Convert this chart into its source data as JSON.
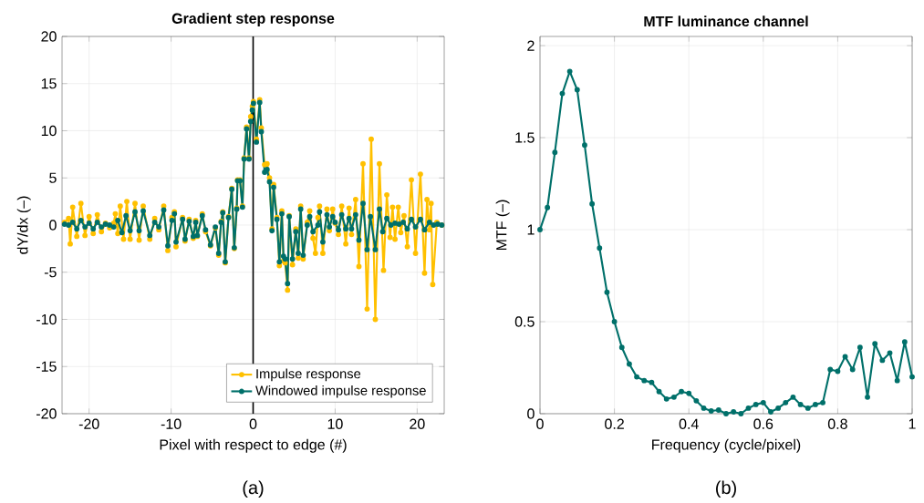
{
  "chart_data": [
    {
      "type": "line",
      "title": "Gradient step response",
      "xlabel": "Pixel with respect to edge (#)",
      "ylabel": "dY/dx (–)",
      "annotations": [
        "(a)"
      ],
      "xlim": [
        -23.3,
        23.3
      ],
      "xticks": [
        -20,
        -10,
        0,
        10,
        20
      ],
      "ylim": [
        -20,
        20
      ],
      "yticks": [
        -20,
        -15,
        -10,
        -5,
        0,
        5,
        10,
        15,
        20
      ],
      "grid": true,
      "legend": "bottom right",
      "marker": "circle",
      "ref_lines": [
        {
          "axis": "x",
          "value": 0,
          "color": "#000000"
        }
      ],
      "series": [
        {
          "name": "Impulse response",
          "color": "#ffc000",
          "x": [
            -23,
            -22.5,
            -22.3,
            -22,
            -21.5,
            -21,
            -20.5,
            -20,
            -19.5,
            -19,
            -18.5,
            -18,
            -17.5,
            -17,
            -16.8,
            -16.5,
            -16.2,
            -15.8,
            -15.4,
            -15,
            -14.4,
            -13.9,
            -13.4,
            -12.6,
            -12,
            -11.5,
            -10.9,
            -10.4,
            -9.9,
            -9.6,
            -9.4,
            -8.6,
            -8.3,
            -7.8,
            -7.3,
            -7,
            -6.8,
            -6.2,
            -5.8,
            -5.2,
            -4.6,
            -4.2,
            -3.9,
            -3.7,
            -3.4,
            -3.0,
            -2.6,
            -2.3,
            -2.0,
            -1.9,
            -1.6,
            -1.3,
            -1.1,
            -0.8,
            -0.5,
            -0.3,
            -0.1,
            0.04,
            0.4,
            0.8,
            1.0,
            1.4,
            1.7,
            2.0,
            2.3,
            2.5,
            2.9,
            3.2,
            3.5,
            3.7,
            3.9,
            4.2,
            4.4,
            4.8,
            5.2,
            5.5,
            5.8,
            6.1,
            6.6,
            6.9,
            7.3,
            7.6,
            7.9,
            8.1,
            8.5,
            9.0,
            9.3,
            9.7,
            10.0,
            10.4,
            10.8,
            11.3,
            11.7,
            12.0,
            12.5,
            12.9,
            13.4,
            13.9,
            14.4,
            14.9,
            15.4,
            15.9,
            16.3,
            16.7,
            17.0,
            17.3,
            17.7,
            18.0,
            18.4,
            18.8,
            19.3,
            19.8,
            20.4,
            20.9,
            21.2,
            21.5,
            21.7,
            21.9,
            22.4,
            23
          ],
          "values": [
            0.3,
            0.7,
            -2.0,
            1.9,
            -1.2,
            2.3,
            -1.1,
            0.9,
            -0.9,
            1.1,
            -0.7,
            0.2,
            -0.3,
            0.2,
            1.2,
            -0.9,
            2.0,
            -1.5,
            2.5,
            -1.5,
            2.3,
            -1.6,
            2.0,
            -1.5,
            0.7,
            -0.5,
            2.0,
            -2.7,
            0.8,
            1.4,
            -2.3,
            0.8,
            -1.7,
            0.6,
            -1.4,
            0.5,
            -1.2,
            1.2,
            -0.7,
            -2.2,
            -0.3,
            -3.2,
            0.4,
            1.4,
            -4.0,
            0.9,
            3.9,
            -2.5,
            1.8,
            4.8,
            4.8,
            2.0,
            7.1,
            10.4,
            7.1,
            11.5,
            12.6,
            13.1,
            9.1,
            13.3,
            10.3,
            6.4,
            6.5,
            5.0,
            -0.4,
            4.3,
            0.8,
            -4.3,
            1.5,
            -3.8,
            -4.0,
            -6.9,
            1.0,
            -4.2,
            -0.4,
            -3.5,
            2.0,
            -3.6,
            0.3,
            1.5,
            -1.4,
            -3.0,
            0.8,
            2.0,
            -3.0,
            1.7,
            -0.6,
            1.7,
            0.2,
            -1.0,
            2.0,
            -2.0,
            1.8,
            -1.0,
            2.7,
            -4.4,
            6.5,
            -8.9,
            9.1,
            -10.0,
            6.5,
            -4.8,
            3.2,
            -1.3,
            1.9,
            -1.5,
            1.9,
            -0.8,
            1.0,
            -2.3,
            4.8,
            -3.0,
            5.4,
            -5.1,
            2.7,
            -0.5,
            2.3,
            -6.3,
            0.3,
            0
          ]
        },
        {
          "name": "Windowed impulse response",
          "color": "#00706a",
          "x": [
            -23,
            -22.5,
            -22,
            -21.5,
            -21,
            -20.5,
            -20,
            -19.5,
            -19,
            -18.5,
            -18,
            -17.5,
            -17,
            -16.5,
            -16,
            -15.5,
            -15,
            -14.4,
            -13.9,
            -13.4,
            -12.6,
            -12,
            -11.5,
            -10.9,
            -10.4,
            -9.9,
            -9.6,
            -9.4,
            -8.6,
            -8.3,
            -7.8,
            -7.3,
            -7,
            -6.8,
            -6.2,
            -5.8,
            -5.2,
            -4.6,
            -4.2,
            -3.9,
            -3.7,
            -3.4,
            -3.0,
            -2.6,
            -2.3,
            -2.0,
            -1.9,
            -1.6,
            -1.3,
            -1.1,
            -0.8,
            -0.5,
            -0.3,
            -0.1,
            0.04,
            0.4,
            0.8,
            1.0,
            1.4,
            1.7,
            2.0,
            2.3,
            2.5,
            2.9,
            3.2,
            3.5,
            3.7,
            3.9,
            4.2,
            4.4,
            4.8,
            5.2,
            5.5,
            5.8,
            6.1,
            6.6,
            6.9,
            7.3,
            7.9,
            8.1,
            8.5,
            9.0,
            9.3,
            9.7,
            10.0,
            10.4,
            10.8,
            11.3,
            11.7,
            12.0,
            12.5,
            12.9,
            13.4,
            13.9,
            14.3,
            14.9,
            15.4,
            15.8,
            16.3,
            16.8,
            17.3,
            17.8,
            18.3,
            18.8,
            19.3,
            19.8,
            20.4,
            20.9,
            21.5,
            22,
            22.5,
            23
          ],
          "values": [
            0.1,
            0,
            0.3,
            -0.4,
            0.5,
            -0.2,
            0.2,
            -0.4,
            0.3,
            -0.2,
            0.1,
            0,
            -0.2,
            0.5,
            -0.8,
            1.0,
            -0.6,
            1.4,
            -0.6,
            1.5,
            -1.1,
            0.3,
            -0.2,
            1.6,
            -2.2,
            0.5,
            1.2,
            -1.8,
            0.6,
            -1.5,
            0.4,
            -1.2,
            0.3,
            -1.1,
            1.0,
            -0.5,
            -2.1,
            -0.2,
            -3.0,
            0.3,
            1.3,
            -3.9,
            0.8,
            3.8,
            -2.4,
            1.7,
            4.7,
            4.7,
            1.9,
            7.0,
            10.2,
            7.0,
            11.0,
            12.2,
            12.9,
            8.8,
            13.0,
            9.9,
            5.6,
            5.9,
            4.6,
            -0.6,
            4.0,
            0.6,
            -3.9,
            1.2,
            -3.3,
            -3.6,
            -6.2,
            0.9,
            -3.6,
            -0.7,
            -3.0,
            1.7,
            -3.2,
            0,
            0.9,
            -0.7,
            0,
            1.4,
            -1.8,
            1.1,
            -0.2,
            0.9,
            0.3,
            -0.5,
            1.1,
            -0.4,
            0.7,
            -0.4,
            1.1,
            -1.6,
            2.3,
            -2.6,
            0.9,
            -2.6,
            1.7,
            -0.7,
            0.7,
            0,
            0.2,
            0.1,
            0.3,
            -0.4,
            0.6,
            -0.2,
            0.6,
            -0.5,
            0.3,
            0,
            0.1,
            0
          ]
        }
      ]
    },
    {
      "type": "line",
      "title": "MTF luminance channel",
      "xlabel": "Frequency (cycle/pixel)",
      "ylabel": "MTF (–)",
      "annotations": [
        "(b)"
      ],
      "xlim": [
        0,
        1
      ],
      "xticks": [
        0,
        0.2,
        0.4,
        0.6,
        0.8,
        1
      ],
      "ylim": [
        0,
        2.05
      ],
      "yticks": [
        0,
        0.5,
        1,
        1.5,
        2
      ],
      "grid": true,
      "marker": "circle",
      "series": [
        {
          "color": "#00706a",
          "x": [
            0,
            0.02,
            0.04,
            0.06,
            0.08,
            0.1,
            0.12,
            0.14,
            0.16,
            0.18,
            0.2,
            0.22,
            0.24,
            0.26,
            0.28,
            0.3,
            0.32,
            0.34,
            0.36,
            0.38,
            0.4,
            0.42,
            0.44,
            0.46,
            0.48,
            0.5,
            0.52,
            0.54,
            0.56,
            0.58,
            0.6,
            0.62,
            0.64,
            0.66,
            0.68,
            0.7,
            0.72,
            0.74,
            0.76,
            0.78,
            0.8,
            0.82,
            0.84,
            0.86,
            0.88,
            0.9,
            0.92,
            0.94,
            0.96,
            0.98,
            1
          ],
          "values": [
            1.0,
            1.12,
            1.42,
            1.74,
            1.86,
            1.76,
            1.46,
            1.14,
            0.9,
            0.66,
            0.5,
            0.36,
            0.27,
            0.2,
            0.18,
            0.17,
            0.12,
            0.08,
            0.09,
            0.12,
            0.11,
            0.07,
            0.03,
            0.015,
            0.02,
            0,
            0.01,
            0,
            0.03,
            0.05,
            0.06,
            0.01,
            0.03,
            0.06,
            0.09,
            0.05,
            0.03,
            0.05,
            0.06,
            0.24,
            0.23,
            0.31,
            0.24,
            0.36,
            0.09,
            0.38,
            0.29,
            0.33,
            0.18,
            0.39,
            0.2
          ]
        }
      ]
    }
  ]
}
